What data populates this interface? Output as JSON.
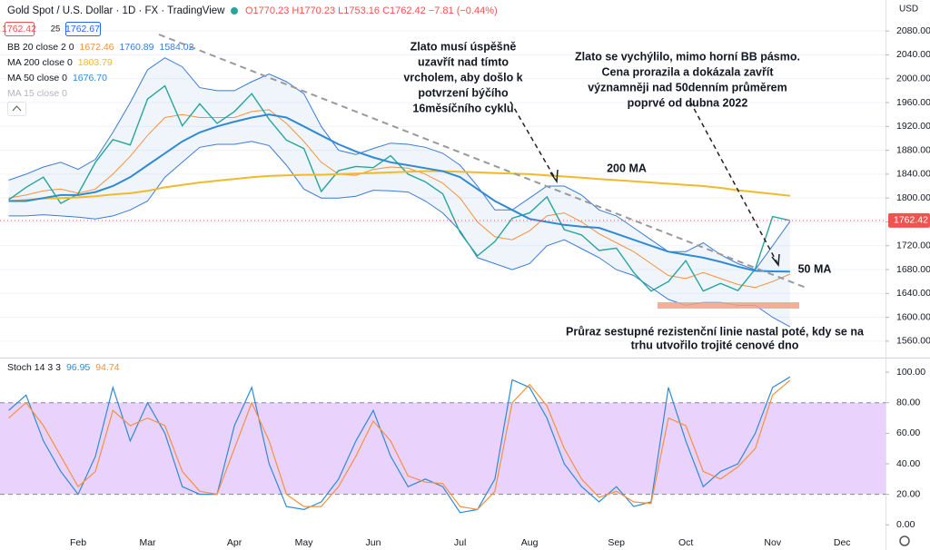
{
  "chart_data": [
    {
      "type": "line",
      "title": "Gold Spot / U.S. Dollar · 1D · FX · TradingView",
      "ohlc": "O1770.23 H1770.23 L1753.16 C1762.42 −7.81 (−0.44%)",
      "spread": 25,
      "ask": 1762.67,
      "currency": "USD",
      "ylim": [
        1534,
        2132
      ],
      "yticks": [
        {
          "value": 1560,
          "label": "1560.00"
        },
        {
          "value": 1600,
          "label": "1600.00"
        },
        {
          "value": 1640,
          "label": "1640.00"
        },
        {
          "value": 1680,
          "label": "1680.00"
        },
        {
          "value": 1720,
          "label": "1720.00"
        },
        {
          "value": 1760,
          "label": "1760.00"
        },
        {
          "value": 1800,
          "label": "1800.00"
        },
        {
          "value": 1840,
          "label": "1840.00"
        },
        {
          "value": 1880,
          "label": "1880.00"
        },
        {
          "value": 1920,
          "label": "1920.00"
        },
        {
          "value": 1960,
          "label": "1960.00"
        },
        {
          "value": 2000,
          "label": "2000.00"
        },
        {
          "value": 2040,
          "label": "2040.00"
        },
        {
          "value": 2080,
          "label": "2080.00"
        }
      ],
      "grid": true,
      "series": [
        {
          "color": "#26a69a",
          "values": [
            1797,
            1818,
            1835,
            1791,
            1807,
            1860,
            1898,
            1889,
            1966,
            1988,
            1921,
            1958,
            1925,
            1945,
            1975,
            1932,
            1897,
            1883,
            1811,
            1846,
            1853,
            1851,
            1871,
            1840,
            1827,
            1807,
            1742,
            1703,
            1727,
            1766,
            1775,
            1802,
            1747,
            1738,
            1712,
            1716,
            1675,
            1644,
            1660,
            1695,
            1644,
            1657,
            1645,
            1681,
            1769,
            1762.42,
            null,
            null,
            null,
            null,
            null
          ]
        },
        {
          "name": "MA 200 close 0",
          "color": "#f2b92a",
          "values": [
            1795,
            1797,
            1799,
            1800,
            1801,
            1803,
            1806,
            1808,
            1812,
            1818,
            1822,
            1826,
            1829,
            1832,
            1835,
            1837,
            1838,
            1839,
            1839,
            1840,
            1841,
            1842,
            1843,
            1844,
            1845,
            1845,
            1844,
            1843,
            1842,
            1841,
            1840,
            1838,
            1836,
            1834,
            1832,
            1830,
            1828,
            1826,
            1824,
            1822,
            1820,
            1817,
            1813,
            1810,
            1807,
            1803.79,
            null,
            null,
            null,
            null,
            null
          ]
        },
        {
          "name": "MA 50 close 0",
          "color": "#2f8ad6",
          "readout": "1676.70",
          "values": [
            1795,
            1795,
            1800,
            1805,
            1805,
            1810,
            1820,
            1835,
            1855,
            1875,
            1895,
            1910,
            1920,
            1928,
            1935,
            1940,
            1935,
            1920,
            1905,
            1890,
            1878,
            1868,
            1860,
            1855,
            1850,
            1845,
            1835,
            1815,
            1795,
            1780,
            1765,
            1760,
            1755,
            1752,
            1750,
            1740,
            1730,
            1720,
            1710,
            1705,
            1700,
            1693,
            1685,
            1678,
            1677,
            1676.7,
            null,
            null,
            null,
            null,
            null
          ]
        }
      ],
      "bb": {
        "name": "BB 20 close 2 0",
        "basis_color": "#f5913e",
        "band_color": "#3a7bd5",
        "basis": [
          1800,
          1805,
          1812,
          1815,
          1808,
          1815,
          1840,
          1870,
          1905,
          1935,
          1940,
          1935,
          1935,
          1935,
          1945,
          1948,
          1925,
          1895,
          1860,
          1840,
          1838,
          1848,
          1852,
          1850,
          1840,
          1825,
          1800,
          1760,
          1735,
          1730,
          1745,
          1770,
          1775,
          1760,
          1740,
          1725,
          1710,
          1690,
          1670,
          1665,
          1675,
          1665,
          1655,
          1650,
          1660,
          1672.46,
          null,
          null,
          null,
          null,
          null
        ],
        "upper": [
          1830,
          1840,
          1852,
          1860,
          1848,
          1865,
          1910,
          1960,
          2015,
          2035,
          2020,
          1985,
          1980,
          1980,
          1995,
          2008,
          1995,
          1975,
          1920,
          1880,
          1873,
          1883,
          1892,
          1890,
          1885,
          1875,
          1855,
          1820,
          1780,
          1780,
          1800,
          1820,
          1820,
          1805,
          1780,
          1770,
          1750,
          1730,
          1710,
          1710,
          1725,
          1705,
          1690,
          1680,
          1720,
          1760.89,
          null,
          null,
          null,
          null,
          null
        ],
        "lower": [
          1770,
          1770,
          1772,
          1770,
          1768,
          1765,
          1770,
          1780,
          1795,
          1835,
          1860,
          1885,
          1890,
          1890,
          1895,
          1888,
          1855,
          1815,
          1800,
          1800,
          1803,
          1813,
          1812,
          1810,
          1795,
          1775,
          1745,
          1700,
          1690,
          1680,
          1690,
          1720,
          1730,
          1715,
          1700,
          1680,
          1670,
          1650,
          1630,
          1620,
          1625,
          1625,
          1620,
          1620,
          1600,
          1584.02,
          null,
          null,
          null,
          null,
          null
        ]
      },
      "hidden_indicators": [
        "MA 15 close 0"
      ],
      "annotations": [
        [
          "Zlato musí úspěšně",
          "uzavřít nad tímto",
          "vrcholem, aby došlo k",
          "potvrzení  býčího",
          "16měsíčního cyklu"
        ],
        [
          "Zlato se vychýlilo, mimo horní BB pásmo.",
          "Cena prorazila a dokázala zavřít",
          "významněji nad 50denním průměrem",
          "poprvé od dubna 2022"
        ],
        [
          "200 MA"
        ],
        [
          "50 MA"
        ],
        [
          "Průraz sestupné rezistenční linie nastal poté, kdy se na",
          "trhu utvořilo trojité cenové dno"
        ]
      ]
    },
    {
      "type": "line",
      "title": "Stoch 14 3 3",
      "categories": [
        null,
        null,
        null,
        null,
        "Feb",
        null,
        null,
        null,
        "Mar",
        null,
        null,
        null,
        null,
        "Apr",
        null,
        null,
        null,
        "May",
        null,
        null,
        null,
        "Jun",
        null,
        null,
        null,
        null,
        "Jul",
        null,
        null,
        null,
        "Aug",
        null,
        null,
        null,
        null,
        "Sep",
        null,
        null,
        null,
        "Oct",
        null,
        null,
        null,
        null,
        "Nov",
        null,
        null,
        null,
        "Dec",
        null,
        null
      ],
      "ylim": [
        -7,
        109
      ],
      "yticks": [
        {
          "value": 0,
          "label": "0.00"
        },
        {
          "value": 20,
          "label": "20.00"
        },
        {
          "value": 40,
          "label": "40.00"
        },
        {
          "value": 60,
          "label": "60.00"
        },
        {
          "value": 80,
          "label": "80.00"
        },
        {
          "value": 100,
          "label": "100.00"
        }
      ],
      "levels": [
        20,
        80
      ],
      "band_color": "#e1c4fb",
      "series": [
        {
          "color": "#2f8ad6",
          "values": [
            75,
            85,
            55,
            35,
            20,
            45,
            90,
            55,
            80,
            60,
            25,
            20,
            20,
            65,
            90,
            40,
            12,
            10,
            15,
            30,
            55,
            75,
            45,
            25,
            30,
            25,
            8,
            10,
            30,
            95,
            90,
            70,
            40,
            25,
            15,
            25,
            12,
            15,
            90,
            55,
            25,
            35,
            40,
            60,
            90,
            96.95,
            null,
            null,
            null,
            null,
            null
          ]
        },
        {
          "color": "#f5913e",
          "values": [
            70,
            80,
            65,
            45,
            25,
            35,
            75,
            65,
            70,
            65,
            35,
            22,
            20,
            50,
            80,
            55,
            20,
            12,
            12,
            25,
            45,
            68,
            55,
            32,
            28,
            27,
            12,
            10,
            22,
            80,
            92,
            78,
            50,
            30,
            18,
            22,
            15,
            14,
            70,
            65,
            35,
            30,
            38,
            50,
            85,
            94.74,
            null,
            null,
            null,
            null,
            null
          ]
        }
      ]
    }
  ]
}
